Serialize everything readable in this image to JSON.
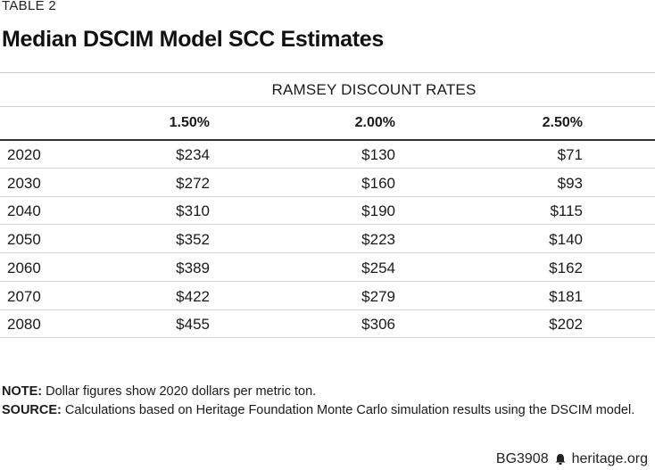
{
  "table_label": "TABLE 2",
  "title": "Median DSCIM Model SCC Estimates",
  "group_header": "RAMSEY DISCOUNT RATES",
  "columns": [
    "1.50%",
    "2.00%",
    "2.50%"
  ],
  "rows": [
    {
      "year": "2020",
      "values": [
        "$234",
        "$130",
        "$71"
      ]
    },
    {
      "year": "2030",
      "values": [
        "$272",
        "$160",
        "$93"
      ]
    },
    {
      "year": "2040",
      "values": [
        "$310",
        "$190",
        "$115"
      ]
    },
    {
      "year": "2050",
      "values": [
        "$352",
        "$223",
        "$140"
      ]
    },
    {
      "year": "2060",
      "values": [
        "$389",
        "$254",
        "$162"
      ]
    },
    {
      "year": "2070",
      "values": [
        "$422",
        "$279",
        "$181"
      ]
    },
    {
      "year": "2080",
      "values": [
        "$455",
        "$306",
        "$202"
      ]
    }
  ],
  "note": {
    "label": "NOTE:",
    "text": " Dollar figures show 2020 dollars per metric ton."
  },
  "source": {
    "label": "SOURCE:",
    "text": " Calculations based on Heritage Foundation Monte Carlo simulation results using the DSCIM model."
  },
  "footer": {
    "code": "BG3908",
    "site": "heritage.org",
    "icon": "bell-icon"
  }
}
